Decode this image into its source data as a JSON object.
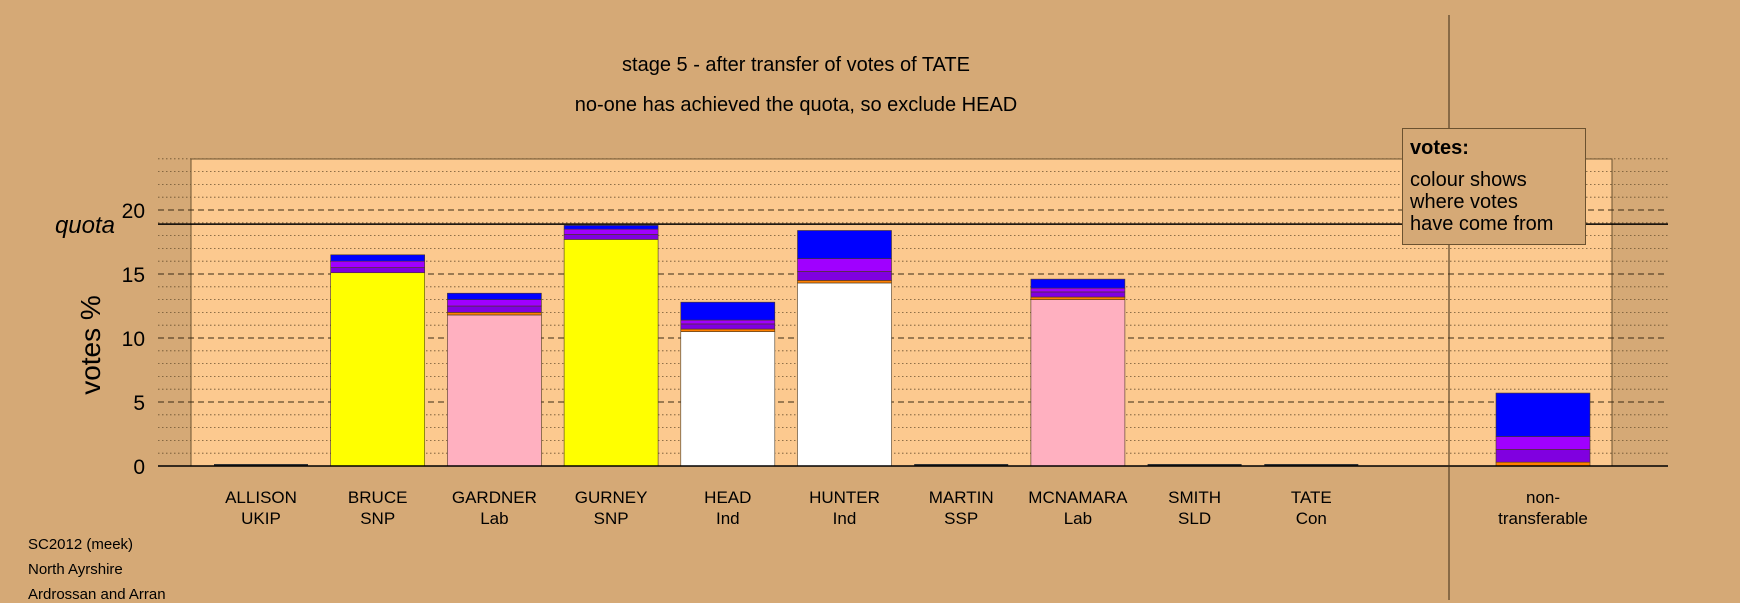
{
  "title": "stage 5 - after transfer of votes of TATE",
  "subtitle": "no-one has achieved the quota, so exclude HEAD",
  "footer": [
    "SC2012 (meek)",
    "North Ayrshire",
    "Ardrossan and Arran"
  ],
  "legend": {
    "title": "votes:",
    "lines": [
      "colour shows",
      "where votes",
      "have come from"
    ]
  },
  "colors": {
    "background": "#d5a976",
    "plot_bg": "#fcc98f",
    "SNP": "#ffff00",
    "Lab": "#ffb0c0",
    "Ind": "#ffffff",
    "transfer_purple": "#8000e0",
    "transfer_violet": "#a000ff",
    "transfer_blue": "#0000ff",
    "transfer_orange": "#ff8000"
  },
  "chart_data": {
    "type": "bar",
    "ylabel": "votes %",
    "ylim": [
      0,
      24
    ],
    "yticks": [
      0,
      5,
      10,
      15,
      20
    ],
    "quota": 18.9,
    "quota_label": "quota",
    "grid": true,
    "legend_position": "top-right",
    "candidates": [
      {
        "name": "ALLISON",
        "party": "UKIP",
        "segments": []
      },
      {
        "name": "BRUCE",
        "party": "SNP",
        "segments": [
          {
            "from": "first preference",
            "value": 15.1,
            "color": "#ffff00"
          },
          {
            "from": "transfer",
            "value": 0.4,
            "color": "#8000e0"
          },
          {
            "from": "transfer",
            "value": 0.5,
            "color": "#a000ff"
          },
          {
            "from": "transfer",
            "value": 0.5,
            "color": "#0000ff"
          }
        ]
      },
      {
        "name": "GARDNER",
        "party": "Lab",
        "segments": [
          {
            "from": "first preference",
            "value": 11.8,
            "color": "#ffb0c0"
          },
          {
            "from": "transfer",
            "value": 0.2,
            "color": "#ff8000"
          },
          {
            "from": "transfer",
            "value": 0.5,
            "color": "#8000e0"
          },
          {
            "from": "transfer",
            "value": 0.5,
            "color": "#a000ff"
          },
          {
            "from": "transfer",
            "value": 0.5,
            "color": "#0000ff"
          }
        ]
      },
      {
        "name": "GURNEY",
        "party": "SNP",
        "segments": [
          {
            "from": "first preference",
            "value": 17.7,
            "color": "#ffff00"
          },
          {
            "from": "transfer",
            "value": 0.4,
            "color": "#8000e0"
          },
          {
            "from": "transfer",
            "value": 0.4,
            "color": "#a000ff"
          },
          {
            "from": "transfer",
            "value": 0.3,
            "color": "#0000ff"
          }
        ]
      },
      {
        "name": "HEAD",
        "party": "Ind",
        "segments": [
          {
            "from": "first preference",
            "value": 10.5,
            "color": "#ffffff"
          },
          {
            "from": "transfer",
            "value": 0.2,
            "color": "#ff8000"
          },
          {
            "from": "transfer",
            "value": 0.4,
            "color": "#8000e0"
          },
          {
            "from": "transfer",
            "value": 0.3,
            "color": "#a000ff"
          },
          {
            "from": "transfer",
            "value": 1.4,
            "color": "#0000ff"
          }
        ]
      },
      {
        "name": "HUNTER",
        "party": "Ind",
        "segments": [
          {
            "from": "first preference",
            "value": 14.3,
            "color": "#ffffff"
          },
          {
            "from": "transfer",
            "value": 0.2,
            "color": "#ff8000"
          },
          {
            "from": "transfer",
            "value": 0.7,
            "color": "#8000e0"
          },
          {
            "from": "transfer",
            "value": 1.0,
            "color": "#a000ff"
          },
          {
            "from": "transfer",
            "value": 2.2,
            "color": "#0000ff"
          }
        ]
      },
      {
        "name": "MARTIN",
        "party": "SSP",
        "segments": []
      },
      {
        "name": "MCNAMARA",
        "party": "Lab",
        "segments": [
          {
            "from": "first preference",
            "value": 13.0,
            "color": "#ffb0c0"
          },
          {
            "from": "transfer",
            "value": 0.2,
            "color": "#ff8000"
          },
          {
            "from": "transfer",
            "value": 0.4,
            "color": "#8000e0"
          },
          {
            "from": "transfer",
            "value": 0.3,
            "color": "#a000ff"
          },
          {
            "from": "transfer",
            "value": 0.7,
            "color": "#0000ff"
          }
        ]
      },
      {
        "name": "SMITH",
        "party": "SLD",
        "segments": []
      },
      {
        "name": "TATE",
        "party": "Con",
        "segments": []
      }
    ],
    "non_transferable": {
      "label": [
        "non-",
        "transferable"
      ],
      "segments": [
        {
          "value": 0.3,
          "color": "#ff8000"
        },
        {
          "value": 1.0,
          "color": "#8000e0"
        },
        {
          "value": 1.0,
          "color": "#a000ff"
        },
        {
          "value": 3.4,
          "color": "#0000ff"
        }
      ]
    }
  }
}
